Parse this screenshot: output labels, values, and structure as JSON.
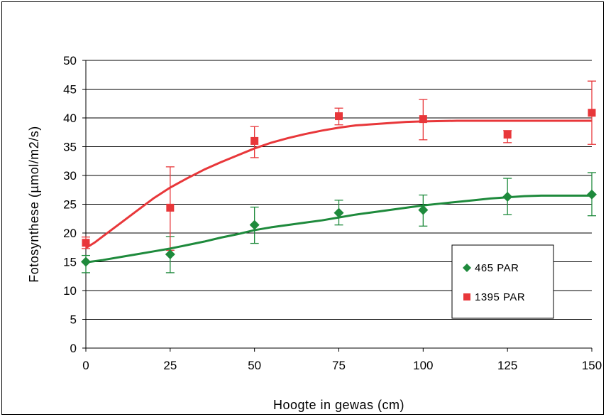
{
  "chart_data": {
    "type": "scatter",
    "xlabel": "Hoogte in gewas (cm)",
    "ylabel": "Fotosynthese (µmol/m2/s)",
    "xlim": [
      0,
      150
    ],
    "ylim": [
      0,
      50
    ],
    "xticks": [
      "0",
      "25",
      "50",
      "75",
      "100",
      "125",
      "150"
    ],
    "yticks": [
      "0",
      "5",
      "10",
      "15",
      "20",
      "25",
      "30",
      "35",
      "40",
      "45",
      "50"
    ],
    "grid": "horizontal",
    "legend_position": "right",
    "series": [
      {
        "name": "465 PAR",
        "color": "#1e8a3c",
        "marker": "diamond",
        "x": [
          0,
          25,
          50,
          75,
          100,
          125,
          150
        ],
        "y": [
          15.0,
          16.3,
          21.4,
          23.5,
          24.0,
          26.3,
          26.7
        ],
        "err_low": [
          1.9,
          3.2,
          3.2,
          2.1,
          2.8,
          3.1,
          3.7
        ],
        "err_high": [
          1.1,
          3.1,
          3.1,
          2.2,
          2.6,
          3.2,
          3.8
        ],
        "fit": {
          "x": [
            0,
            5,
            10,
            15,
            20,
            25,
            30,
            35,
            40,
            45,
            50,
            55,
            60,
            65,
            70,
            75,
            80,
            85,
            90,
            95,
            100,
            105,
            110,
            115,
            120,
            125,
            130,
            135,
            140,
            145,
            150
          ],
          "y": [
            14.9,
            15.3,
            15.8,
            16.3,
            16.8,
            17.3,
            17.9,
            18.5,
            19.2,
            19.8,
            20.5,
            21.0,
            21.4,
            21.8,
            22.2,
            22.7,
            23.2,
            23.6,
            24.0,
            24.4,
            24.8,
            25.1,
            25.4,
            25.7,
            26.0,
            26.2,
            26.4,
            26.5,
            26.5,
            26.5,
            26.5
          ]
        }
      },
      {
        "name": "1395 PAR",
        "color": "#e8373a",
        "marker": "square",
        "x": [
          0,
          25,
          50,
          75,
          100,
          125,
          150
        ],
        "y": [
          18.3,
          24.4,
          36.0,
          40.3,
          39.8,
          37.1,
          40.9
        ],
        "err_low": [
          1.0,
          7.4,
          2.9,
          1.5,
          3.6,
          1.4,
          5.5
        ],
        "err_high": [
          1.0,
          7.1,
          2.5,
          1.4,
          3.4,
          0.7,
          5.5
        ],
        "fit": {
          "x": [
            0,
            2.5,
            5,
            10,
            15,
            20,
            25,
            30,
            35,
            40,
            45,
            50,
            55,
            60,
            65,
            70,
            75,
            80,
            85,
            90,
            95,
            100,
            110,
            120,
            130,
            140,
            150
          ],
          "y": [
            17.4,
            18.3,
            19.4,
            21.6,
            23.8,
            26.0,
            27.9,
            29.5,
            31.0,
            32.3,
            33.5,
            34.7,
            35.7,
            36.5,
            37.2,
            37.8,
            38.3,
            38.7,
            38.9,
            39.1,
            39.3,
            39.4,
            39.5,
            39.5,
            39.5,
            39.5,
            39.5
          ]
        }
      }
    ]
  }
}
